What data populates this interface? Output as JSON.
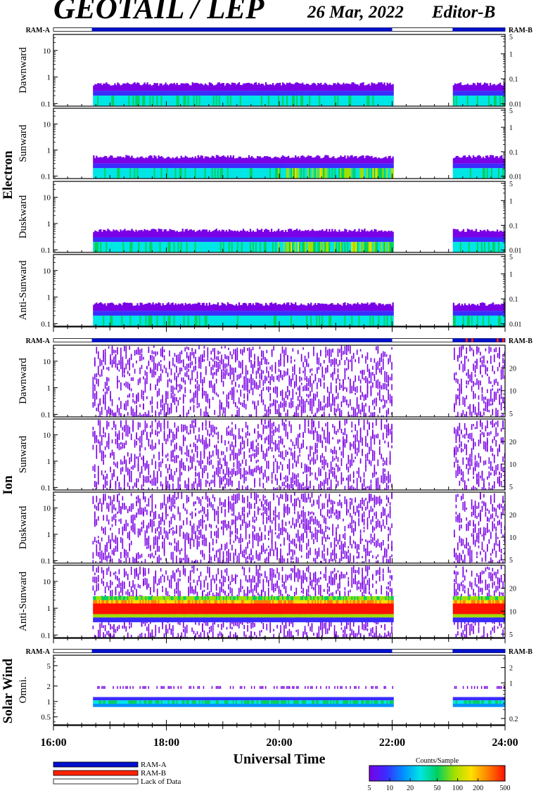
{
  "header": {
    "title": "GEOTAIL / LEP",
    "date": "26 Mar, 2022",
    "editor": "Editor-B"
  },
  "colors": {
    "ram_a": "#0010cc",
    "ram_b": "#ff2200",
    "lack": "#ffffff",
    "colorbar_stops": [
      "#7a00e6",
      "#3a2cff",
      "#0090ff",
      "#00e5e5",
      "#00d060",
      "#a0e000",
      "#ffe000",
      "#ff8000",
      "#ff1000"
    ]
  },
  "chart_data": {
    "type": "heatmap",
    "x_axis": {
      "label": "Universal Time",
      "range": [
        16,
        24
      ],
      "ticks": [
        16,
        18,
        20,
        22,
        24
      ],
      "tick_labels": [
        "16:00",
        "18:00",
        "20:00",
        "22:00",
        "24:00"
      ]
    },
    "ram_labels": {
      "left": "RAM-A",
      "right": "RAM-B"
    },
    "data_intervals": [
      [
        16.68,
        22.0
      ],
      [
        23.07,
        24.0
      ]
    ],
    "groups": [
      {
        "name": "Electron",
        "left_ticks": [
          0.1,
          1,
          10
        ],
        "left_tick_labels": [
          "0.1",
          "1",
          "10"
        ],
        "right_ticks": [
          0.01,
          0.1,
          1,
          5
        ],
        "right_tick_labels": [
          "0.01",
          "0.1",
          "1",
          "5"
        ],
        "panels": [
          {
            "label": "Dawnward"
          },
          {
            "label": "Sunward"
          },
          {
            "label": "Duskward"
          },
          {
            "label": "Anti-Sunward"
          }
        ]
      },
      {
        "name": "Ion",
        "left_ticks": [
          0.1,
          1,
          10
        ],
        "left_tick_labels": [
          "0.1",
          "1",
          "10"
        ],
        "right_ticks": [
          5,
          10,
          20
        ],
        "right_tick_labels": [
          "5",
          "10",
          "20"
        ],
        "panels": [
          {
            "label": "Dawnward"
          },
          {
            "label": "Sunward"
          },
          {
            "label": "Duskward"
          },
          {
            "label": "Anti-Sunward"
          }
        ]
      },
      {
        "name": "Solar Wind",
        "left_ticks": [
          0.5,
          1,
          2,
          5
        ],
        "left_tick_labels": [
          "0.5",
          "1",
          "2",
          "5"
        ],
        "right_ticks": [
          0.2,
          1,
          2
        ],
        "right_tick_labels": [
          "0.2",
          "1",
          "2"
        ],
        "panels": [
          {
            "label": "Omni."
          }
        ]
      }
    ],
    "legend": {
      "items": [
        {
          "label": "RAM-A",
          "color": "#0010cc"
        },
        {
          "label": "RAM-B",
          "color": "#ff2200"
        },
        {
          "label": "Lack of Data",
          "color": "#ffffff"
        }
      ]
    },
    "colorbar": {
      "title": "Counts/Sample",
      "scale": "log",
      "range": [
        5,
        500
      ],
      "ticks": [
        5,
        10,
        20,
        50,
        100,
        200,
        500
      ],
      "tick_labels": [
        "5",
        "10",
        "20",
        "50",
        "100",
        "200",
        "500"
      ]
    }
  }
}
